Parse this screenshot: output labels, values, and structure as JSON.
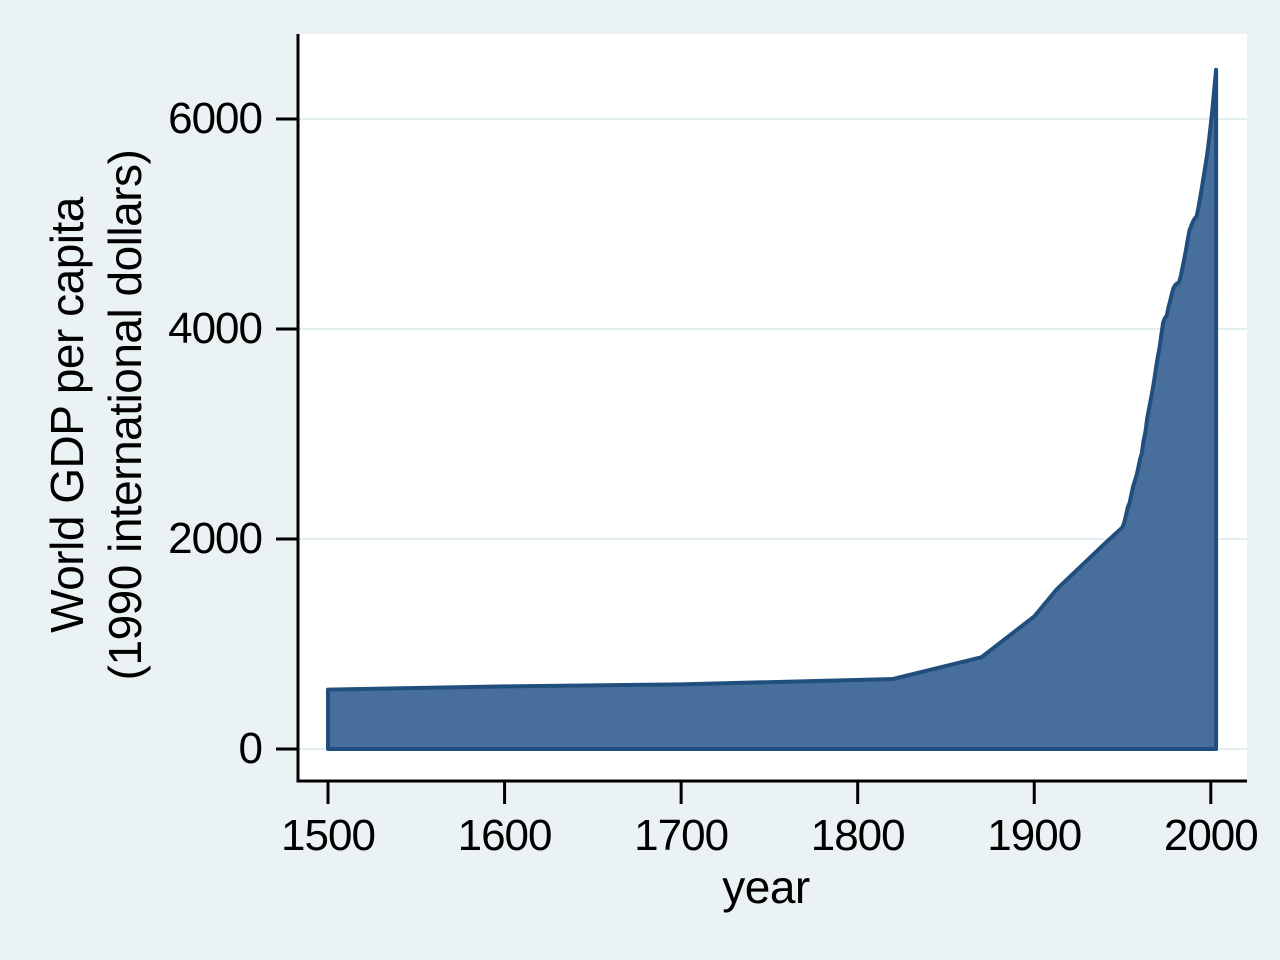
{
  "window": {
    "background_color": "#eaf2f3",
    "plot_background_color": "#ffffff"
  },
  "chart_data": {
    "type": "area",
    "title": "",
    "xlabel": "year",
    "ylabel_lines": [
      "World GDP per capita",
      "(1990 international dollars)"
    ],
    "x_tick_values": [
      1500,
      1600,
      1700,
      1800,
      1900,
      2000
    ],
    "x_tick_labels": [
      "1500",
      "1600",
      "1700",
      "1800",
      "1900",
      "2000"
    ],
    "y_tick_values": [
      0,
      2000,
      4000,
      6000
    ],
    "y_tick_labels": [
      "0",
      "2000",
      "4000",
      "6000"
    ],
    "xlim": [
      1483,
      2020.5
    ],
    "ylim": [
      -305,
      6810
    ],
    "grid": "horizontal",
    "legend_position": "none",
    "colors": {
      "area_fill": "#486f9b",
      "area_line": "#214f7d",
      "axis": "#000000",
      "gridline": "#e4eef1",
      "text": "#000000"
    },
    "series": [
      {
        "name": "World GDP per capita (1990 international dollars)",
        "baseline": 0,
        "points": [
          [
            1500,
            566
          ],
          [
            1600,
            596
          ],
          [
            1700,
            615
          ],
          [
            1820,
            667
          ],
          [
            1870,
            873
          ],
          [
            1900,
            1262
          ],
          [
            1913,
            1526
          ],
          [
            1940,
            1958
          ],
          [
            1950,
            2111
          ],
          [
            1951,
            2160
          ],
          [
            1952,
            2230
          ],
          [
            1953,
            2300
          ],
          [
            1954,
            2345
          ],
          [
            1955,
            2425
          ],
          [
            1956,
            2500
          ],
          [
            1957,
            2555
          ],
          [
            1958,
            2610
          ],
          [
            1959,
            2685
          ],
          [
            1960,
            2765
          ],
          [
            1961,
            2820
          ],
          [
            1962,
            2945
          ],
          [
            1963,
            3025
          ],
          [
            1964,
            3150
          ],
          [
            1965,
            3240
          ],
          [
            1966,
            3330
          ],
          [
            1967,
            3415
          ],
          [
            1968,
            3520
          ],
          [
            1969,
            3635
          ],
          [
            1970,
            3735
          ],
          [
            1971,
            3825
          ],
          [
            1972,
            3950
          ],
          [
            1973,
            4060
          ],
          [
            1974,
            4105
          ],
          [
            1975,
            4125
          ],
          [
            1976,
            4205
          ],
          [
            1977,
            4270
          ],
          [
            1978,
            4340
          ],
          [
            1979,
            4395
          ],
          [
            1980,
            4420
          ],
          [
            1981,
            4435
          ],
          [
            1982,
            4445
          ],
          [
            1983,
            4505
          ],
          [
            1984,
            4590
          ],
          [
            1985,
            4670
          ],
          [
            1986,
            4760
          ],
          [
            1987,
            4860
          ],
          [
            1988,
            4945
          ],
          [
            1989,
            4985
          ],
          [
            1990,
            5025
          ],
          [
            1991,
            5055
          ],
          [
            1992,
            5075
          ],
          [
            1993,
            5155
          ],
          [
            1994,
            5255
          ],
          [
            1995,
            5355
          ],
          [
            1996,
            5455
          ],
          [
            1997,
            5560
          ],
          [
            1998,
            5670
          ],
          [
            1999,
            5800
          ],
          [
            2000,
            5950
          ],
          [
            2001,
            6110
          ],
          [
            2002,
            6290
          ],
          [
            2003,
            6470
          ]
        ]
      }
    ]
  }
}
